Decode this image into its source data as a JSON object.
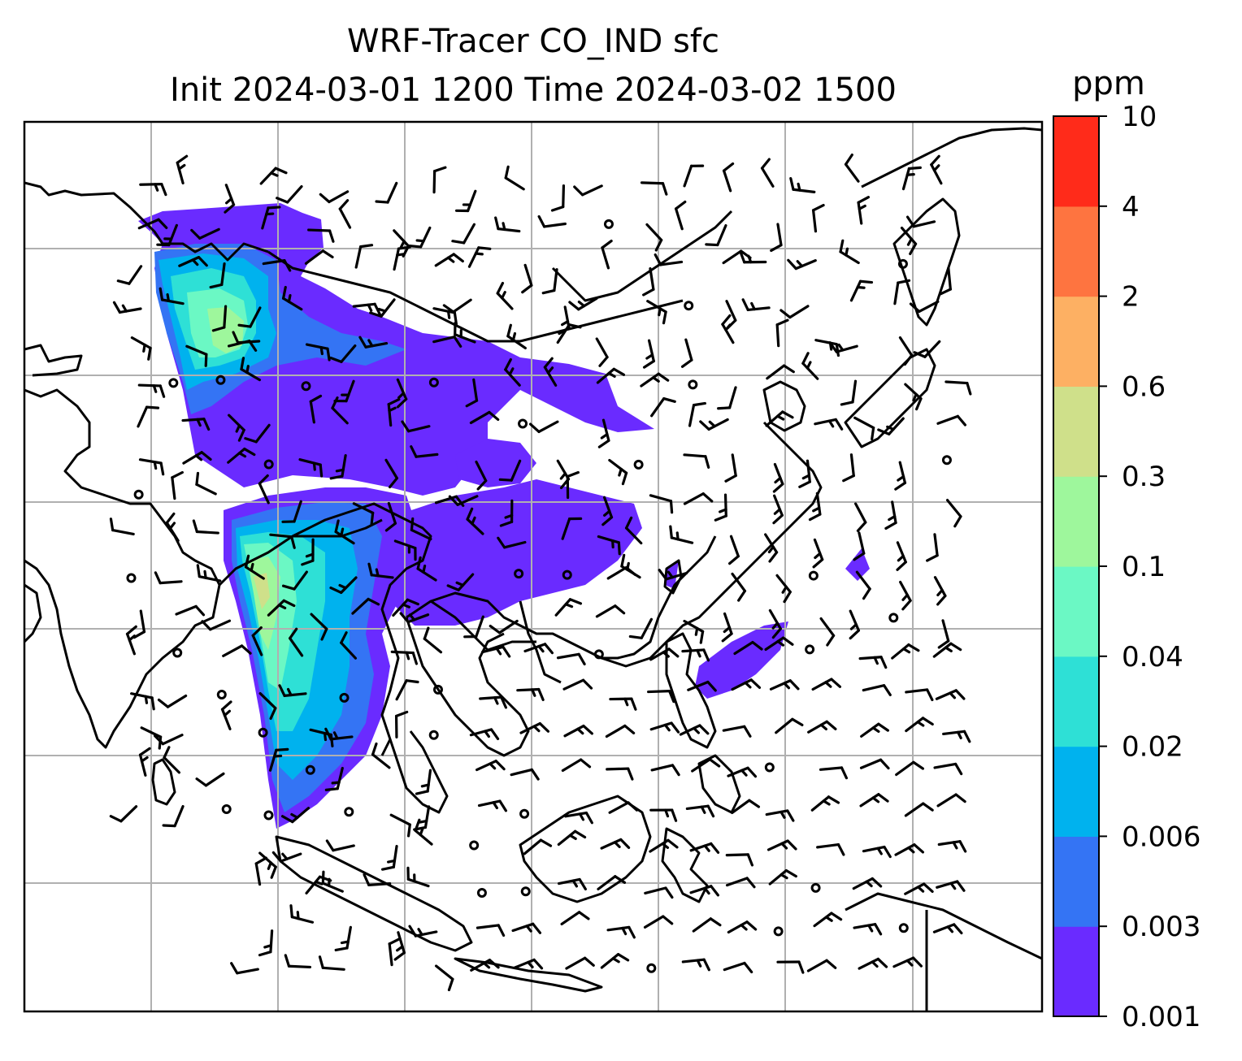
{
  "title": {
    "line1": "WRF-Tracer CO_IND sfc",
    "line2": "Init 2024-03-01 1200 Time 2024-03-02 1500"
  },
  "colorbar": {
    "units": "ppm",
    "levels": [
      "0.001",
      "0.003",
      "0.006",
      "0.02",
      "0.04",
      "0.1",
      "0.3",
      "0.6",
      "2",
      "4",
      "10"
    ],
    "colors": [
      "#6a2bff",
      "#3474f4",
      "#00b2ee",
      "#2ee0d6",
      "#6bf8c4",
      "#9ef79c",
      "#cfe08a",
      "#fdb063",
      "#fe7440",
      "#ff2b1a"
    ]
  },
  "map": {
    "frame_color": "#000000",
    "grid_color": "#b0b0b0",
    "coastline_color": "#000000",
    "tracer_colors": {
      "low": "#6a2bff",
      "mid_low": "#3474f4",
      "mid": "#00b2ee",
      "mid_high": "#2ee0d6",
      "high": "#6bf8c4",
      "higher": "#9ef79c",
      "peak": "#cfe08a"
    }
  }
}
